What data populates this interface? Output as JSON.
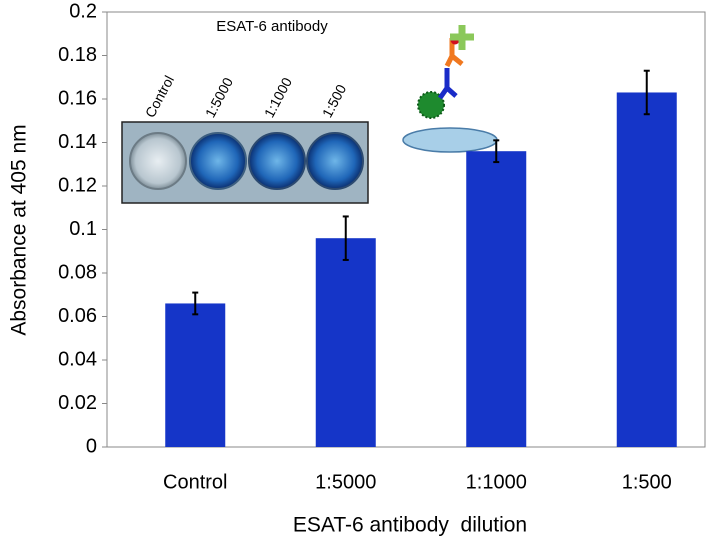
{
  "chart_data": {
    "type": "bar",
    "x_label": "ESAT-6 antibody  dilution",
    "y_label": "Absorbance at 405 nm",
    "categories": [
      "Control",
      "1:5000",
      "1:1000",
      "1:500"
    ],
    "values": [
      0.066,
      0.096,
      0.136,
      0.163
    ],
    "errors": [
      0.005,
      0.01,
      0.005,
      0.01
    ],
    "color": "#1535c8",
    "ylim": [
      0,
      0.2
    ],
    "yticks": [
      0,
      0.02,
      0.04,
      0.06,
      0.08,
      0.1,
      0.12,
      0.14,
      0.16,
      0.18,
      0.2
    ],
    "grid": false,
    "inset": {
      "title": "ESAT-6 antibody",
      "labels": [
        "Control",
        "1:5000",
        "1:1000",
        "1:500"
      ]
    }
  }
}
